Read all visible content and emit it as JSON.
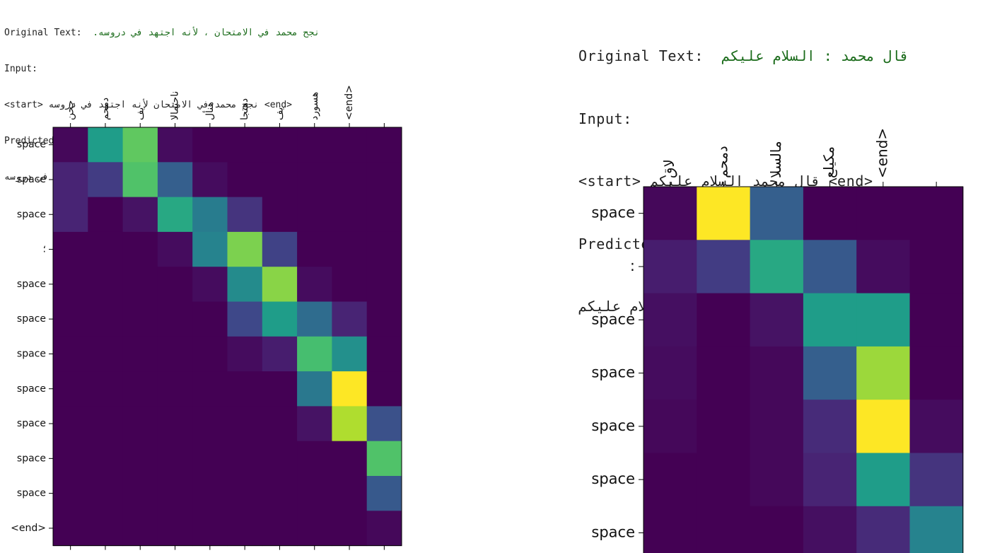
{
  "colors": {
    "viridis": [
      "#440154",
      "#482878",
      "#3e4989",
      "#31688e",
      "#26828e",
      "#1f9e89",
      "#35b779",
      "#6ece58",
      "#b5de2b",
      "#fde725"
    ]
  },
  "left": {
    "original_label": "Original Text:",
    "original_value": "نجح محمد في الامتحان ، لأنه اجتهد في دروسه.",
    "input_label": "Input:",
    "input_value": "<start> نجح محمد في الامتحان لأنه اجتهد في دروسه <end>",
    "predicted_label": "Predicted punctuation:",
    "predicted_value": "نجح محمد في الامتحان؛ لأنه اجتهد في دروسه <end>"
  },
  "right": {
    "original_label": "Original Text:",
    "original_value": "قال محمد : السلام عليكم",
    "input_label": "Input:",
    "input_value": "<start> قال محمد السلام عليكم <end>",
    "predicted_label": "Predicted punctuation:",
    "predicted_value": "قال محمد: السلام عليكم <end>"
  },
  "chart_data": [
    {
      "type": "heatmap",
      "x_ticks": [
        "جحن",
        "دمحم",
        "يف",
        "ناحتمالا",
        "هنأل",
        "دهتجا",
        "يف",
        "هسورد",
        "<end>",
        ""
      ],
      "y_ticks": [
        "space",
        "space",
        "space",
        "؛",
        "space",
        "space",
        "space",
        "space",
        "space",
        "space",
        "space",
        "<end>"
      ],
      "zlim": [
        0,
        1
      ],
      "values": [
        [
          0.02,
          0.55,
          0.75,
          0.03,
          0.0,
          0.0,
          0.0,
          0.0,
          0.0,
          0.0
        ],
        [
          0.1,
          0.18,
          0.72,
          0.3,
          0.03,
          0.0,
          0.0,
          0.0,
          0.0,
          0.0
        ],
        [
          0.1,
          0.0,
          0.05,
          0.6,
          0.42,
          0.15,
          0.0,
          0.0,
          0.0,
          0.0
        ],
        [
          0.0,
          0.0,
          0.0,
          0.03,
          0.45,
          0.8,
          0.2,
          0.0,
          0.0,
          0.0
        ],
        [
          0.0,
          0.0,
          0.0,
          0.0,
          0.03,
          0.48,
          0.82,
          0.03,
          0.0,
          0.0
        ],
        [
          0.0,
          0.0,
          0.0,
          0.0,
          0.0,
          0.22,
          0.55,
          0.35,
          0.1,
          0.0
        ],
        [
          0.0,
          0.0,
          0.0,
          0.0,
          0.0,
          0.03,
          0.08,
          0.7,
          0.5,
          0.0
        ],
        [
          0.0,
          0.0,
          0.0,
          0.0,
          0.0,
          0.0,
          0.0,
          0.4,
          1.0,
          0.0
        ],
        [
          0.0,
          0.0,
          0.0,
          0.0,
          0.0,
          0.0,
          0.0,
          0.05,
          0.88,
          0.25
        ],
        [
          0.0,
          0.0,
          0.0,
          0.0,
          0.0,
          0.0,
          0.0,
          0.0,
          0.0,
          0.72
        ],
        [
          0.0,
          0.0,
          0.0,
          0.0,
          0.0,
          0.0,
          0.0,
          0.0,
          0.0,
          0.28
        ],
        [
          0.0,
          0.0,
          0.0,
          0.0,
          0.0,
          0.0,
          0.0,
          0.0,
          0.0,
          0.02
        ]
      ]
    },
    {
      "type": "heatmap",
      "x_ticks": [
        "لاق",
        "دمحم",
        "مالسلا",
        "مكيلع",
        "<end>",
        ""
      ],
      "y_ticks": [
        "space",
        ":",
        "space",
        "space",
        "space",
        "space",
        "space"
      ],
      "zlim": [
        0,
        1
      ],
      "values": [
        [
          0.02,
          1.0,
          0.3,
          0.0,
          0.0,
          0.0
        ],
        [
          0.08,
          0.18,
          0.6,
          0.28,
          0.03,
          0.0
        ],
        [
          0.04,
          0.0,
          0.05,
          0.55,
          0.55,
          0.0
        ],
        [
          0.03,
          0.0,
          0.02,
          0.3,
          0.85,
          0.0
        ],
        [
          0.02,
          0.0,
          0.02,
          0.12,
          1.0,
          0.03
        ],
        [
          0.0,
          0.0,
          0.02,
          0.1,
          0.55,
          0.15
        ],
        [
          0.0,
          0.0,
          0.0,
          0.04,
          0.12,
          0.45
        ]
      ]
    }
  ]
}
